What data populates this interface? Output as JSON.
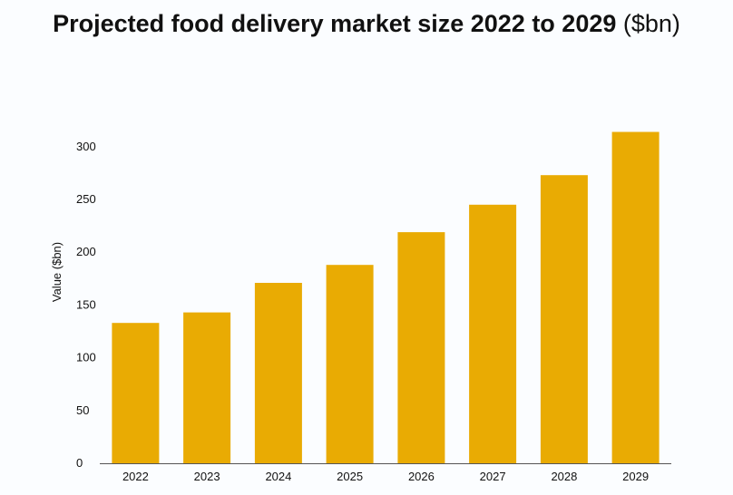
{
  "chart_data": {
    "type": "bar",
    "title": "Projected food delivery market size 2022 to 2029",
    "title_unit": "($bn)",
    "xlabel": "",
    "ylabel": "Value ($bn)",
    "categories": [
      "2022",
      "2023",
      "2024",
      "2025",
      "2026",
      "2027",
      "2028",
      "2029"
    ],
    "values": [
      133,
      143,
      171,
      188,
      219,
      245,
      273,
      314
    ],
    "yticks": [
      0,
      50,
      100,
      150,
      200,
      250,
      300
    ],
    "ylim": [
      0,
      300
    ],
    "grid": false,
    "bar_color": "#e9ab03"
  }
}
